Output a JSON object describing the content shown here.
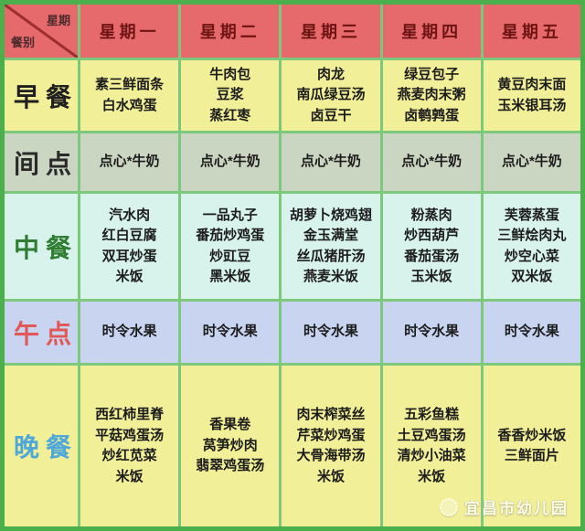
{
  "header": {
    "corner_top": "星期",
    "corner_bottom": "餐别",
    "days": [
      "星期一",
      "星期二",
      "星期三",
      "星期四",
      "星期五"
    ]
  },
  "rows": [
    {
      "id": "breakfast",
      "label": "早餐",
      "label_color": "#1f1f1f",
      "bg": "#f1ef97",
      "cells": [
        [
          "素三鲜面条",
          "白水鸡蛋"
        ],
        [
          "牛肉包",
          "豆浆",
          "蒸红枣"
        ],
        [
          "肉龙",
          "南瓜绿豆汤",
          "卤豆干"
        ],
        [
          "绿豆包子",
          "燕麦肉末粥",
          "卤鹌鹑蛋"
        ],
        [
          "黄豆肉末面",
          "玉米银耳汤"
        ]
      ]
    },
    {
      "id": "morning-snack",
      "label": "间点",
      "label_color": "#2a2a2a",
      "bg": "#cbd6c2",
      "cells": [
        [
          "点心*牛奶"
        ],
        [
          "点心*牛奶"
        ],
        [
          "点心*牛奶"
        ],
        [
          "点心*牛奶"
        ],
        [
          "点心*牛奶"
        ]
      ]
    },
    {
      "id": "lunch",
      "label": "中餐",
      "label_color": "#2e7d32",
      "bg": "#d8f3ec",
      "cells": [
        [
          "汽水肉",
          "红白豆腐",
          "双耳炒蛋",
          "米饭"
        ],
        [
          "一品丸子",
          "番茄炒鸡蛋",
          "炒豇豆",
          "黑米饭"
        ],
        [
          "胡萝卜烧鸡翅",
          "金玉满堂",
          "丝瓜猪肝汤",
          "燕麦米饭"
        ],
        [
          "粉蒸肉",
          "炒西葫芦",
          "番茄蛋汤",
          "玉米饭"
        ],
        [
          "芙蓉蒸蛋",
          "三鲜烩肉丸",
          "炒空心菜",
          "双米饭"
        ]
      ]
    },
    {
      "id": "afternoon-snack",
      "label": "午点",
      "label_color": "#e25757",
      "bg": "#c8d4f0",
      "cells": [
        [
          "时令水果"
        ],
        [
          "时令水果"
        ],
        [
          "时令水果"
        ],
        [
          "时令水果"
        ],
        [
          "时令水果"
        ]
      ]
    },
    {
      "id": "dinner",
      "label": "晚餐",
      "label_color": "#4fa8d8",
      "bg": "#f1ef97",
      "cells": [
        [
          "西红柿里脊",
          "平菇鸡蛋汤",
          "炒红苋菜",
          "米饭"
        ],
        [
          "香果卷",
          "莴笋炒肉",
          "翡翠鸡蛋汤"
        ],
        [
          "肉末榨菜丝",
          "芹菜炒鸡蛋",
          "大骨海带汤",
          "米饭"
        ],
        [
          "五彩鱼糕",
          "土豆鸡蛋汤",
          "清炒小油菜",
          "米饭"
        ],
        [
          "香香炒米饭",
          "三鲜面片"
        ]
      ]
    }
  ],
  "colors": {
    "header_bg": "#e6696b",
    "header_text": "#6e1414",
    "corner_text": "#4a2a2a",
    "diagonal_line": "#9b2f2f",
    "grid_outer": "#4bb04b",
    "grid_inner": "#7cc87c"
  },
  "watermark": {
    "text": "宜昌市幼儿园"
  }
}
